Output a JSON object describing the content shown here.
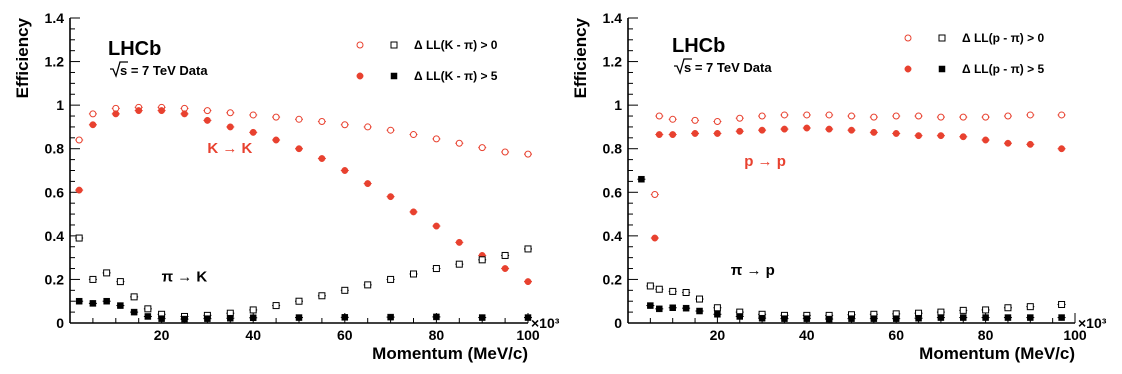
{
  "colors": {
    "red": "#e8412f",
    "black": "#000000"
  },
  "chart_data": [
    {
      "type": "scatter",
      "xlabel": "Momentum (MeV/c)",
      "ylabel": "Efficiency",
      "x_multiplier": "×10³",
      "xlim": [
        0,
        100
      ],
      "ylim": [
        0,
        1.4
      ],
      "xticks": [
        "20",
        "40",
        "60",
        "80",
        "100"
      ],
      "yticks": [
        "0",
        "0.2",
        "0.4",
        "0.6",
        "0.8",
        "1",
        "1.2",
        "1.4"
      ],
      "experiment": "LHCb",
      "subtitle_sqrt": "s",
      "subtitle_rest": " = 7 TeV Data",
      "legend": [
        {
          "label": "Δ LL(K - π) > 0",
          "red_marker": "open-circle",
          "black_marker": "open-square"
        },
        {
          "label": "Δ LL(K - π) > 5",
          "red_marker": "filled-circle",
          "black_marker": "filled-square"
        }
      ],
      "annotations": [
        {
          "text": "K → K",
          "color": "red",
          "x": 30,
          "y": 0.78
        },
        {
          "text": "π → K",
          "color": "black",
          "x": 20,
          "y": 0.19
        }
      ],
      "series": [
        {
          "name": "K → K, Δ LL(K - π) > 0",
          "color": "red",
          "marker": "open-circle",
          "points": [
            [
              2,
              0.84
            ],
            [
              5,
              0.96
            ],
            [
              10,
              0.985
            ],
            [
              15,
              0.99
            ],
            [
              20,
              0.99
            ],
            [
              25,
              0.985
            ],
            [
              30,
              0.975
            ],
            [
              35,
              0.965
            ],
            [
              40,
              0.955
            ],
            [
              45,
              0.945
            ],
            [
              50,
              0.935
            ],
            [
              55,
              0.925
            ],
            [
              60,
              0.91
            ],
            [
              65,
              0.9
            ],
            [
              70,
              0.885
            ],
            [
              75,
              0.865
            ],
            [
              80,
              0.845
            ],
            [
              85,
              0.825
            ],
            [
              90,
              0.805
            ],
            [
              95,
              0.785
            ],
            [
              100,
              0.775
            ]
          ]
        },
        {
          "name": "K → K, Δ LL(K - π) > 5",
          "color": "red",
          "marker": "filled-circle",
          "points": [
            [
              2,
              0.61
            ],
            [
              5,
              0.91
            ],
            [
              10,
              0.96
            ],
            [
              15,
              0.975
            ],
            [
              20,
              0.975
            ],
            [
              25,
              0.96
            ],
            [
              30,
              0.93
            ],
            [
              35,
              0.9
            ],
            [
              40,
              0.875
            ],
            [
              45,
              0.84
            ],
            [
              50,
              0.8
            ],
            [
              55,
              0.755
            ],
            [
              60,
              0.7
            ],
            [
              65,
              0.64
            ],
            [
              70,
              0.58
            ],
            [
              75,
              0.51
            ],
            [
              80,
              0.445
            ],
            [
              85,
              0.37
            ],
            [
              90,
              0.31
            ],
            [
              95,
              0.25
            ],
            [
              100,
              0.19
            ]
          ]
        },
        {
          "name": "π → K, Δ LL(K - π) > 0",
          "color": "black",
          "marker": "open-square",
          "points": [
            [
              2,
              0.39
            ],
            [
              5,
              0.2
            ],
            [
              8,
              0.23
            ],
            [
              11,
              0.19
            ],
            [
              14,
              0.12
            ],
            [
              17,
              0.065
            ],
            [
              20,
              0.04
            ],
            [
              25,
              0.03
            ],
            [
              30,
              0.035
            ],
            [
              35,
              0.045
            ],
            [
              40,
              0.06
            ],
            [
              45,
              0.08
            ],
            [
              50,
              0.1
            ],
            [
              55,
              0.125
            ],
            [
              60,
              0.15
            ],
            [
              65,
              0.175
            ],
            [
              70,
              0.2
            ],
            [
              75,
              0.225
            ],
            [
              80,
              0.25
            ],
            [
              85,
              0.27
            ],
            [
              90,
              0.29
            ],
            [
              95,
              0.31
            ],
            [
              100,
              0.34
            ]
          ]
        },
        {
          "name": "π → K, Δ LL(K - π) > 5",
          "color": "black",
          "marker": "filled-square",
          "points": [
            [
              2,
              0.1
            ],
            [
              5,
              0.09
            ],
            [
              8,
              0.1
            ],
            [
              11,
              0.08
            ],
            [
              14,
              0.05
            ],
            [
              17,
              0.03
            ],
            [
              20,
              0.02
            ],
            [
              25,
              0.018
            ],
            [
              30,
              0.02
            ],
            [
              35,
              0.022
            ],
            [
              40,
              0.024
            ],
            [
              50,
              0.025
            ],
            [
              60,
              0.026
            ],
            [
              70,
              0.027
            ],
            [
              80,
              0.028
            ],
            [
              90,
              0.025
            ],
            [
              100,
              0.025
            ]
          ]
        }
      ]
    },
    {
      "type": "scatter",
      "xlabel": "Momentum (MeV/c)",
      "ylabel": "Efficiency",
      "x_multiplier": "×10³",
      "xlim": [
        0,
        100
      ],
      "ylim": [
        0,
        1.4
      ],
      "xticks": [
        "20",
        "40",
        "60",
        "80",
        "100"
      ],
      "yticks": [
        "0",
        "0.2",
        "0.4",
        "0.6",
        "0.8",
        "1",
        "1.2",
        "1.4"
      ],
      "experiment": "LHCb",
      "subtitle_sqrt": "s",
      "subtitle_rest": " = 7 TeV Data",
      "legend": [
        {
          "label": "Δ LL(p - π) > 0",
          "red_marker": "open-circle",
          "black_marker": "open-square"
        },
        {
          "label": "Δ LL(p - π) > 5",
          "red_marker": "filled-circle",
          "black_marker": "filled-square"
        }
      ],
      "annotations": [
        {
          "text": "p → p",
          "color": "red",
          "x": 26,
          "y": 0.72
        },
        {
          "text": "π → p",
          "color": "black",
          "x": 23,
          "y": 0.22
        }
      ],
      "series": [
        {
          "name": "p → p, Δ LL(p - π) > 0",
          "color": "red",
          "marker": "open-circle",
          "points": [
            [
              6,
              0.59
            ],
            [
              7,
              0.95
            ],
            [
              10,
              0.935
            ],
            [
              15,
              0.93
            ],
            [
              20,
              0.925
            ],
            [
              25,
              0.94
            ],
            [
              30,
              0.95
            ],
            [
              35,
              0.955
            ],
            [
              40,
              0.955
            ],
            [
              45,
              0.955
            ],
            [
              50,
              0.95
            ],
            [
              55,
              0.945
            ],
            [
              60,
              0.95
            ],
            [
              65,
              0.95
            ],
            [
              70,
              0.945
            ],
            [
              75,
              0.945
            ],
            [
              80,
              0.945
            ],
            [
              85,
              0.95
            ],
            [
              90,
              0.955
            ],
            [
              97,
              0.955
            ]
          ]
        },
        {
          "name": "p → p, Δ LL(p - π) > 5",
          "color": "red",
          "marker": "filled-circle",
          "points": [
            [
              6,
              0.39
            ],
            [
              7,
              0.865
            ],
            [
              10,
              0.865
            ],
            [
              15,
              0.87
            ],
            [
              20,
              0.87
            ],
            [
              25,
              0.88
            ],
            [
              30,
              0.885
            ],
            [
              35,
              0.89
            ],
            [
              40,
              0.895
            ],
            [
              45,
              0.89
            ],
            [
              50,
              0.885
            ],
            [
              55,
              0.875
            ],
            [
              60,
              0.87
            ],
            [
              65,
              0.86
            ],
            [
              70,
              0.86
            ],
            [
              75,
              0.855
            ],
            [
              80,
              0.84
            ],
            [
              85,
              0.825
            ],
            [
              90,
              0.82
            ],
            [
              97,
              0.8
            ]
          ]
        },
        {
          "name": "π → p, Δ LL(p - π) > 0",
          "color": "black",
          "marker": "open-square",
          "points": [
            [
              5,
              0.17
            ],
            [
              7,
              0.155
            ],
            [
              10,
              0.145
            ],
            [
              13,
              0.14
            ],
            [
              16,
              0.11
            ],
            [
              20,
              0.07
            ],
            [
              25,
              0.05
            ],
            [
              30,
              0.04
            ],
            [
              35,
              0.035
            ],
            [
              40,
              0.035
            ],
            [
              45,
              0.035
            ],
            [
              50,
              0.038
            ],
            [
              55,
              0.04
            ],
            [
              60,
              0.042
            ],
            [
              65,
              0.045
            ],
            [
              70,
              0.05
            ],
            [
              75,
              0.058
            ],
            [
              80,
              0.06
            ],
            [
              85,
              0.07
            ],
            [
              90,
              0.075
            ],
            [
              97,
              0.085
            ]
          ]
        },
        {
          "name": "π → p, Δ LL(p - π) > 5",
          "color": "black",
          "marker": "filled-square",
          "points": [
            [
              3,
              0.66
            ],
            [
              5,
              0.08
            ],
            [
              7,
              0.065
            ],
            [
              10,
              0.07
            ],
            [
              13,
              0.068
            ],
            [
              16,
              0.055
            ],
            [
              20,
              0.04
            ],
            [
              25,
              0.03
            ],
            [
              30,
              0.022
            ],
            [
              35,
              0.02
            ],
            [
              40,
              0.02
            ],
            [
              45,
              0.018
            ],
            [
              50,
              0.02
            ],
            [
              55,
              0.02
            ],
            [
              60,
              0.02
            ],
            [
              65,
              0.022
            ],
            [
              70,
              0.025
            ],
            [
              75,
              0.025
            ],
            [
              80,
              0.025
            ],
            [
              85,
              0.025
            ],
            [
              90,
              0.025
            ],
            [
              97,
              0.025
            ]
          ]
        }
      ]
    }
  ]
}
